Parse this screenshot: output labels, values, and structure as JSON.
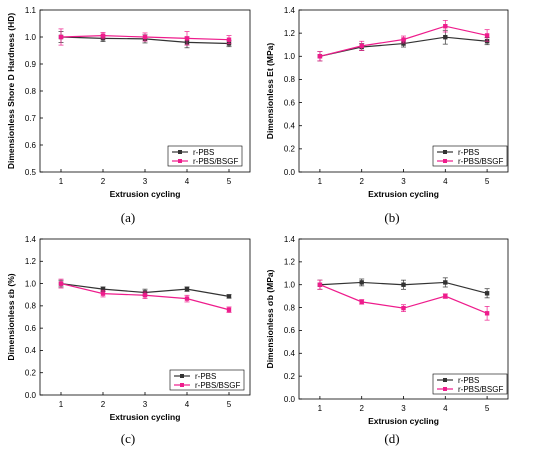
{
  "colors": {
    "r-PBS": "#333333",
    "r-PBS/BSGF": "#ee1c8c"
  },
  "chart_data": [
    {
      "type": "line",
      "panel_label": "(a)",
      "x": [
        1,
        2,
        3,
        4,
        5
      ],
      "xlabel": "Extrusion cycling",
      "ylabel": "Dimensionless Shore D Hardness (HD)",
      "xlim": [
        0.5,
        5.5
      ],
      "ylim": [
        0.5,
        1.1
      ],
      "yticks": [
        0.5,
        0.6,
        0.7,
        0.8,
        0.9,
        1.0,
        1.1
      ],
      "ytick_labels": [
        "0.5",
        "0.6",
        "0.7",
        "0.8",
        "0.9",
        "1.0",
        "1.1"
      ],
      "legend_position": "bottom-right",
      "series": [
        {
          "name": "r-PBS",
          "values": [
            1.0,
            0.995,
            0.993,
            0.98,
            0.976
          ],
          "errors": [
            0.02,
            0.012,
            0.015,
            0.02,
            0.012
          ]
        },
        {
          "name": "r-PBS/BSGF",
          "values": [
            1.0,
            1.005,
            1.0,
            0.995,
            0.99
          ],
          "errors": [
            0.03,
            0.012,
            0.015,
            0.025,
            0.015
          ]
        }
      ]
    },
    {
      "type": "line",
      "panel_label": "(b)",
      "x": [
        1,
        2,
        3,
        4,
        5
      ],
      "xlabel": "Extrusion cycling",
      "ylabel": "Dimensionless Et (MPa)",
      "xlim": [
        0.5,
        5.5
      ],
      "ylim": [
        0.0,
        1.4
      ],
      "yticks": [
        0.0,
        0.2,
        0.4,
        0.6,
        0.8,
        1.0,
        1.2,
        1.4
      ],
      "ytick_labels": [
        "0.0",
        "0.2",
        "0.4",
        "0.6",
        "0.8",
        "1.0",
        "1.2",
        "1.4"
      ],
      "legend_position": "bottom-right",
      "series": [
        {
          "name": "r-PBS",
          "values": [
            1.0,
            1.08,
            1.11,
            1.165,
            1.13
          ],
          "errors": [
            0.04,
            0.03,
            0.03,
            0.06,
            0.03
          ]
        },
        {
          "name": "r-PBS/BSGF",
          "values": [
            1.0,
            1.09,
            1.145,
            1.26,
            1.18
          ],
          "errors": [
            0.04,
            0.04,
            0.03,
            0.05,
            0.05
          ]
        }
      ]
    },
    {
      "type": "line",
      "panel_label": "(c)",
      "x": [
        1,
        2,
        3,
        4,
        5
      ],
      "xlabel": "Extrusion cycling",
      "ylabel": "Dimensionless εb (%)",
      "xlim": [
        0.5,
        5.5
      ],
      "ylim": [
        0.0,
        1.4
      ],
      "yticks": [
        0.0,
        0.2,
        0.4,
        0.6,
        0.8,
        1.0,
        1.2,
        1.4
      ],
      "ytick_labels": [
        "0.0",
        "0.2",
        "0.4",
        "0.6",
        "0.8",
        "1.0",
        "1.2",
        "1.4"
      ],
      "legend_position": "bottom-right",
      "series": [
        {
          "name": "r-PBS",
          "values": [
            1.0,
            0.95,
            0.92,
            0.95,
            0.885
          ],
          "errors": [
            0.03,
            0.02,
            0.03,
            0.02,
            0.015
          ]
        },
        {
          "name": "r-PBS/BSGF",
          "values": [
            1.0,
            0.91,
            0.895,
            0.865,
            0.765
          ],
          "errors": [
            0.04,
            0.03,
            0.03,
            0.03,
            0.025
          ]
        }
      ]
    },
    {
      "type": "line",
      "panel_label": "(d)",
      "x": [
        1,
        2,
        3,
        4,
        5
      ],
      "xlabel": "Extrusion cycling",
      "ylabel": "Dimensionless σb (MPa)",
      "xlim": [
        0.5,
        5.5
      ],
      "ylim": [
        0.0,
        1.4
      ],
      "yticks": [
        0.0,
        0.2,
        0.4,
        0.6,
        0.8,
        1.0,
        1.2,
        1.4
      ],
      "ytick_labels": [
        "0.0",
        "0.2",
        "0.4",
        "0.6",
        "0.8",
        "1.0",
        "1.2",
        "1.4"
      ],
      "legend_position": "bottom-right",
      "series": [
        {
          "name": "r-PBS",
          "values": [
            1.0,
            1.02,
            1.0,
            1.02,
            0.925
          ],
          "errors": [
            0.04,
            0.03,
            0.04,
            0.04,
            0.04
          ]
        },
        {
          "name": "r-PBS/BSGF",
          "values": [
            1.0,
            0.85,
            0.795,
            0.9,
            0.75
          ],
          "errors": [
            0.04,
            0.02,
            0.03,
            0.02,
            0.06
          ]
        }
      ]
    }
  ]
}
